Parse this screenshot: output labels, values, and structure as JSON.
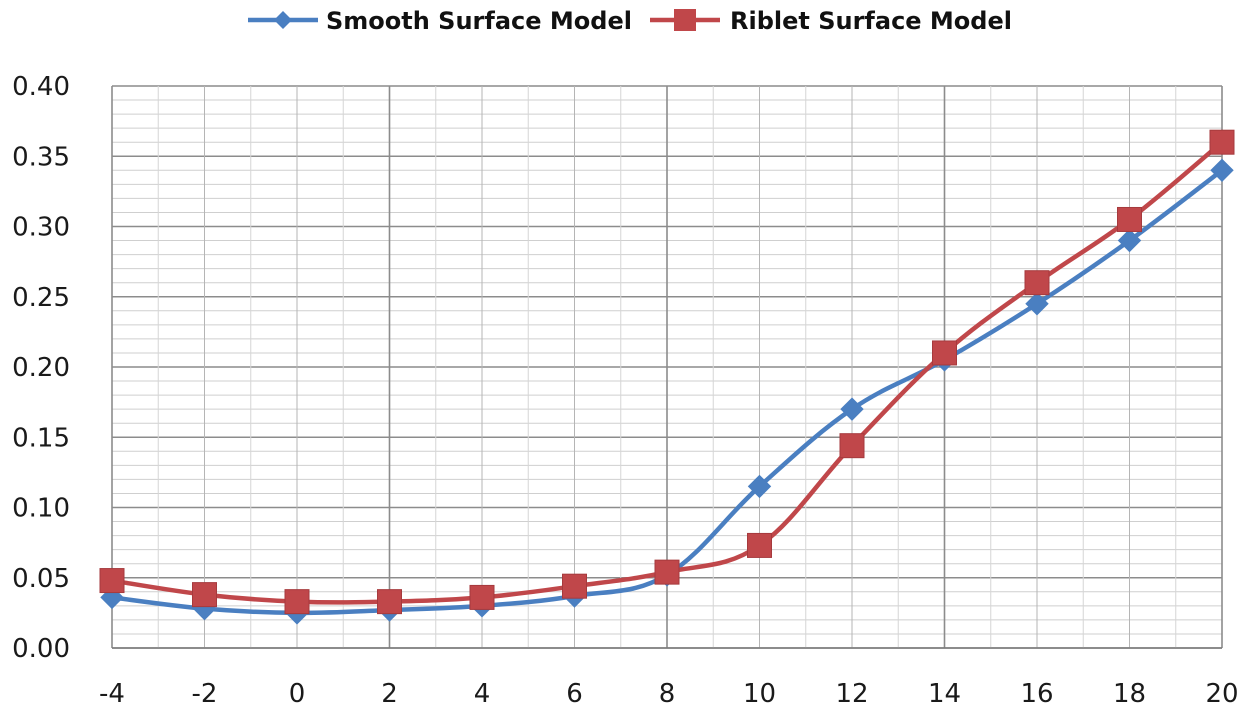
{
  "chart_data": {
    "type": "line",
    "title": "",
    "xlabel": "",
    "ylabel": "",
    "x": [
      -4,
      -2,
      0,
      2,
      4,
      6,
      8,
      10,
      12,
      14,
      16,
      18,
      20
    ],
    "xlim": [
      -4,
      20
    ],
    "ylim": [
      0,
      0.4
    ],
    "x_tick_labels": [
      "-4",
      "-2",
      "0",
      "2",
      "4",
      "6",
      "8",
      "10",
      "12",
      "14",
      "16",
      "18",
      "20"
    ],
    "y_tick_labels": [
      "0.00",
      "0.05",
      "0.10",
      "0.15",
      "0.20",
      "0.25",
      "0.30",
      "0.35",
      "0.40"
    ],
    "grid": true,
    "legend_position": "top",
    "series": [
      {
        "name": "Smooth Surface Model",
        "color": "#4a7fc1",
        "marker": "diamond",
        "values": [
          0.036,
          0.028,
          0.025,
          0.027,
          0.03,
          0.037,
          0.052,
          0.115,
          0.17,
          0.205,
          0.245,
          0.29,
          0.34
        ]
      },
      {
        "name": "Riblet Surface Model",
        "color": "#c0474a",
        "marker": "square",
        "values": [
          0.048,
          0.038,
          0.033,
          0.033,
          0.036,
          0.044,
          0.054,
          0.073,
          0.144,
          0.21,
          0.26,
          0.305,
          0.36
        ]
      }
    ]
  }
}
